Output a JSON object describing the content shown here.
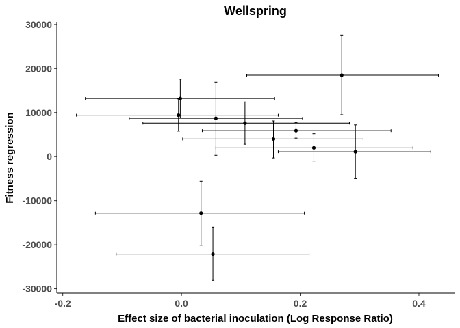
{
  "chart_data": {
    "type": "scatter",
    "title": "Wellspring",
    "xlabel": "Effect size of bacterial inoculation (Log Response Ratio)",
    "ylabel": "Fitness regression",
    "xlim": [
      -0.21,
      0.46
    ],
    "ylim": [
      -31000,
      30600
    ],
    "x_ticks": [
      -0.2,
      0.0,
      0.2,
      0.4
    ],
    "x_tick_labels": [
      "-0.2",
      "0.0",
      "0.2",
      "0.4"
    ],
    "y_ticks": [
      -30000,
      -20000,
      -10000,
      0,
      10000,
      20000,
      30000
    ],
    "y_tick_labels": [
      "-30000",
      "-20000",
      "-10000",
      "0",
      "10000",
      "20000",
      "30000"
    ],
    "grid": false,
    "colors": {
      "points": "#000000",
      "errorbars": "#000000",
      "tick_text": "#4d4d4d"
    },
    "points": [
      {
        "x": 0.27,
        "y": 18500,
        "x_lo": 0.11,
        "x_hi": 0.433,
        "y_lo": 9500,
        "y_hi": 27600
      },
      {
        "x": -0.002,
        "y": 13200,
        "x_lo": -0.162,
        "x_hi": 0.157,
        "y_lo": 8800,
        "y_hi": 17600
      },
      {
        "x": -0.005,
        "y": 9400,
        "x_lo": -0.177,
        "x_hi": 0.163,
        "y_lo": 5800,
        "y_hi": 13100
      },
      {
        "x": 0.058,
        "y": 8700,
        "x_lo": -0.088,
        "x_hi": 0.204,
        "y_lo": 300,
        "y_hi": 16900
      },
      {
        "x": 0.107,
        "y": 7600,
        "x_lo": -0.065,
        "x_hi": 0.283,
        "y_lo": 2800,
        "y_hi": 12400
      },
      {
        "x": 0.193,
        "y": 5900,
        "x_lo": 0.035,
        "x_hi": 0.353,
        "y_lo": 4200,
        "y_hi": 7700
      },
      {
        "x": 0.155,
        "y": 4000,
        "x_lo": 0.002,
        "x_hi": 0.306,
        "y_lo": -300,
        "y_hi": 8100
      },
      {
        "x": 0.223,
        "y": 2000,
        "x_lo": 0.058,
        "x_hi": 0.39,
        "y_lo": -1000,
        "y_hi": 5200
      },
      {
        "x": 0.293,
        "y": 1100,
        "x_lo": 0.163,
        "x_hi": 0.42,
        "y_lo": -5000,
        "y_hi": 7200
      },
      {
        "x": 0.033,
        "y": -12800,
        "x_lo": -0.145,
        "x_hi": 0.207,
        "y_lo": -20100,
        "y_hi": -5600
      },
      {
        "x": 0.053,
        "y": -22100,
        "x_lo": -0.11,
        "x_hi": 0.215,
        "y_lo": -28100,
        "y_hi": -16000
      }
    ]
  }
}
